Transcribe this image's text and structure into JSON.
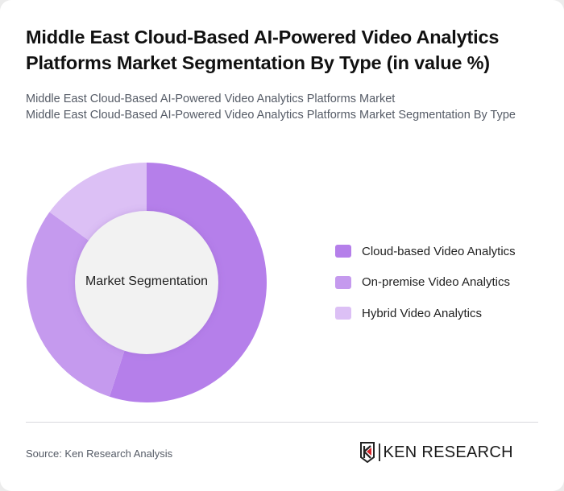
{
  "header": {
    "title": "Middle East Cloud-Based AI-Powered Video Analytics Platforms Market Segmentation By Type (in value %)",
    "subtitle_line1": "Middle East Cloud-Based AI-Powered Video Analytics Platforms Market",
    "subtitle_line2": "Middle East Cloud-Based AI-Powered Video Analytics Platforms Market Segmentation By Type"
  },
  "chart": {
    "center_label": "Market Segmentation"
  },
  "legend": [
    {
      "label": "Cloud-based Video Analytics",
      "color": "#B57FEA"
    },
    {
      "label": "On-premise Video Analytics",
      "color": "#C59AEE"
    },
    {
      "label": "Hybrid Video Analytics",
      "color": "#DCC0F5"
    }
  ],
  "footer": {
    "source": "Source: Ken Research Analysis",
    "logo_text": "KEN RESEARCH"
  },
  "chart_data": {
    "type": "pie",
    "variant": "donut",
    "title": "Middle East Cloud-Based AI-Powered Video Analytics Platforms Market Segmentation By Type (in value %)",
    "center_label": "Market Segmentation",
    "categories": [
      "Cloud-based Video Analytics",
      "On-premise Video Analytics",
      "Hybrid Video Analytics"
    ],
    "values": [
      55,
      30,
      15
    ],
    "colors": [
      "#B57FEA",
      "#C59AEE",
      "#DCC0F5"
    ],
    "unit": "%",
    "legend_position": "right"
  }
}
